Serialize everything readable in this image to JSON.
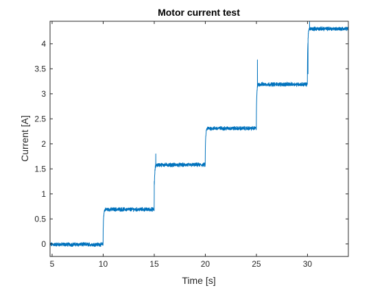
{
  "chart_data": {
    "type": "line",
    "title": "Motor current test",
    "xlabel": "Time [s]",
    "ylabel": "Current [A]",
    "xlim": [
      4.8,
      34
    ],
    "ylim": [
      -0.25,
      4.45
    ],
    "xticks": [
      5,
      10,
      15,
      20,
      25,
      30
    ],
    "yticks": [
      0,
      0.5,
      1,
      1.5,
      2,
      2.5,
      3,
      3.5,
      4
    ],
    "xtick_labels": [
      "5",
      "10",
      "15",
      "20",
      "25",
      "30"
    ],
    "ytick_labels": [
      "0",
      "0.5",
      "1",
      "1.5",
      "2",
      "2.5",
      "3",
      "3.5",
      "4"
    ],
    "grid": false,
    "legend": "none",
    "series": [
      {
        "color": "#0072BD",
        "noise_amplitude": 0.03,
        "segments": [
          {
            "start": 4.8,
            "end": 10,
            "level": -0.01
          },
          {
            "start": 10,
            "end": 15,
            "level": 0.69
          },
          {
            "start": 15,
            "end": 20,
            "level": 1.58
          },
          {
            "start": 20,
            "end": 25,
            "level": 2.31
          },
          {
            "start": 25,
            "end": 30,
            "level": 3.19
          },
          {
            "start": 30,
            "end": 34,
            "level": 4.3
          }
        ],
        "spikes": [
          {
            "x": 15.0,
            "y": 1.25
          },
          {
            "x": 15.15,
            "y": 1.8
          },
          {
            "x": 25.1,
            "y": 3.68
          },
          {
            "x": 30.05,
            "y": 3.4
          },
          {
            "x": 30.2,
            "y": 4.45
          }
        ]
      }
    ]
  }
}
